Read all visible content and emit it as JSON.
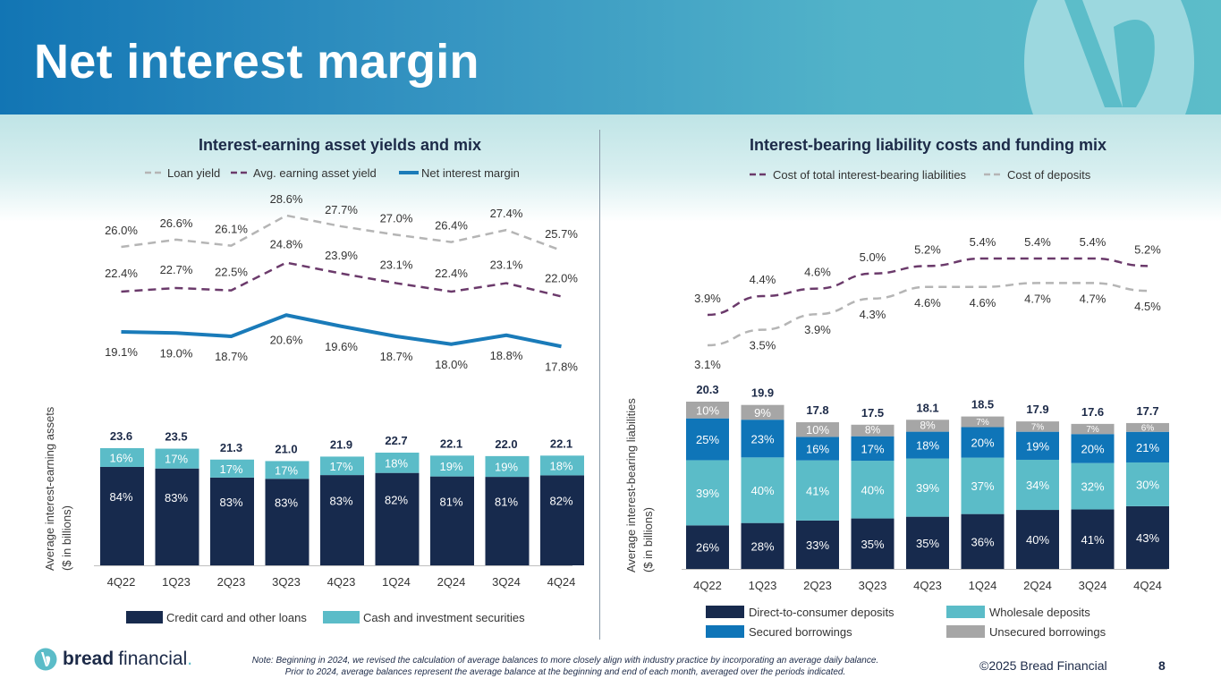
{
  "header": {
    "title": "Net interest margin"
  },
  "left_section": {
    "title": "Interest-earning asset yields and mix",
    "y_axis_title_line1": "Average interest-earning assets",
    "y_axis_title_line2": "($ in billions)"
  },
  "right_section": {
    "title": "Interest-bearing liability costs and funding mix",
    "y_axis_title_line1": "Average interest-bearing liabilities",
    "y_axis_title_line2": "($ in billions)"
  },
  "colors": {
    "navy": "#172a4d",
    "teal": "#5bbcc8",
    "blue": "#0f75b8",
    "gray": "#a6a6a6",
    "purple": "#6b3a6b",
    "loan_gray": "#b8b8b8",
    "nim_blue": "#1a7bb9",
    "text_dark": "#1c2a48"
  },
  "chart_data": [
    {
      "id": "asset-yields",
      "type": "line",
      "title": "Interest-earning asset yields",
      "categories": [
        "4Q22",
        "1Q23",
        "2Q23",
        "3Q23",
        "4Q23",
        "1Q24",
        "2Q24",
        "3Q24",
        "4Q24"
      ],
      "unit": "%",
      "legend_position": "top",
      "series": [
        {
          "name": "Loan yield",
          "style": "dashed-gray",
          "values": [
            26.0,
            26.6,
            26.1,
            28.6,
            27.7,
            27.0,
            26.4,
            27.4,
            25.7
          ]
        },
        {
          "name": "Avg. earning asset yield",
          "style": "dashed-purple",
          "values": [
            22.4,
            22.7,
            22.5,
            24.8,
            23.9,
            23.1,
            22.4,
            23.1,
            22.0
          ]
        },
        {
          "name": "Net interest margin",
          "style": "solid-blue",
          "values": [
            19.1,
            19.0,
            18.7,
            20.6,
            19.6,
            18.7,
            18.0,
            18.8,
            17.8
          ]
        }
      ]
    },
    {
      "id": "asset-mix",
      "type": "bar",
      "stacked": true,
      "title": "Average interest-earning assets ($ in billions)",
      "categories": [
        "4Q22",
        "1Q23",
        "2Q23",
        "3Q23",
        "4Q23",
        "1Q24",
        "2Q24",
        "3Q24",
        "4Q24"
      ],
      "totals": [
        23.6,
        23.5,
        21.3,
        21.0,
        21.9,
        22.7,
        22.1,
        22.0,
        22.1
      ],
      "legend_position": "bottom",
      "series": [
        {
          "name": "Credit card and other loans",
          "color": "#172a4d",
          "values": [
            84,
            83,
            83,
            83,
            83,
            82,
            81,
            81,
            82
          ]
        },
        {
          "name": "Cash and investment securities",
          "color": "#5bbcc8",
          "values": [
            16,
            17,
            17,
            17,
            17,
            18,
            19,
            19,
            18
          ]
        }
      ]
    },
    {
      "id": "liability-costs",
      "type": "line",
      "title": "Interest-bearing liability costs",
      "categories": [
        "4Q22",
        "1Q23",
        "2Q23",
        "3Q23",
        "4Q23",
        "1Q24",
        "2Q24",
        "3Q24",
        "4Q24"
      ],
      "unit": "%",
      "legend_position": "top",
      "series": [
        {
          "name": "Cost of total interest-bearing liabilities",
          "style": "dashed-purple",
          "values": [
            3.9,
            4.4,
            4.6,
            5.0,
            5.2,
            5.4,
            5.4,
            5.4,
            5.2
          ]
        },
        {
          "name": "Cost of deposits",
          "style": "dashed-gray",
          "values": [
            3.1,
            3.5,
            3.9,
            4.3,
            4.6,
            4.6,
            4.7,
            4.7,
            4.5
          ]
        }
      ]
    },
    {
      "id": "funding-mix",
      "type": "bar",
      "stacked": true,
      "title": "Average interest-bearing liabilities ($ in billions)",
      "categories": [
        "4Q22",
        "1Q23",
        "2Q23",
        "3Q23",
        "4Q23",
        "1Q24",
        "2Q24",
        "3Q24",
        "4Q24"
      ],
      "totals": [
        20.3,
        19.9,
        17.8,
        17.5,
        18.1,
        18.5,
        17.9,
        17.6,
        17.7
      ],
      "legend_position": "bottom",
      "series": [
        {
          "name": "Direct-to-consumer deposits",
          "color": "#172a4d",
          "values": [
            26,
            28,
            33,
            35,
            35,
            36,
            40,
            41,
            43
          ]
        },
        {
          "name": "Wholesale deposits",
          "color": "#5bbcc8",
          "values": [
            39,
            40,
            41,
            40,
            39,
            37,
            34,
            32,
            30
          ]
        },
        {
          "name": "Secured borrowings",
          "color": "#0f75b8",
          "values": [
            25,
            23,
            16,
            17,
            18,
            20,
            19,
            20,
            21
          ]
        },
        {
          "name": "Unsecured borrowings",
          "color": "#a6a6a6",
          "values": [
            10,
            9,
            10,
            8,
            8,
            7,
            7,
            7,
            6
          ]
        }
      ]
    }
  ],
  "footer": {
    "logo_bold": "bread",
    "logo_text": "financial",
    "logo_dot": ".",
    "note_line1": "Note: Beginning in 2024, we revised the calculation of average balances to more closely align with industry practice by incorporating an average daily balance.",
    "note_line2": "Prior to 2024, average balances represent the average balance at the beginning and end of each month, averaged over the periods indicated.",
    "copyright": "©2025 Bread Financial",
    "page_number": "8"
  }
}
